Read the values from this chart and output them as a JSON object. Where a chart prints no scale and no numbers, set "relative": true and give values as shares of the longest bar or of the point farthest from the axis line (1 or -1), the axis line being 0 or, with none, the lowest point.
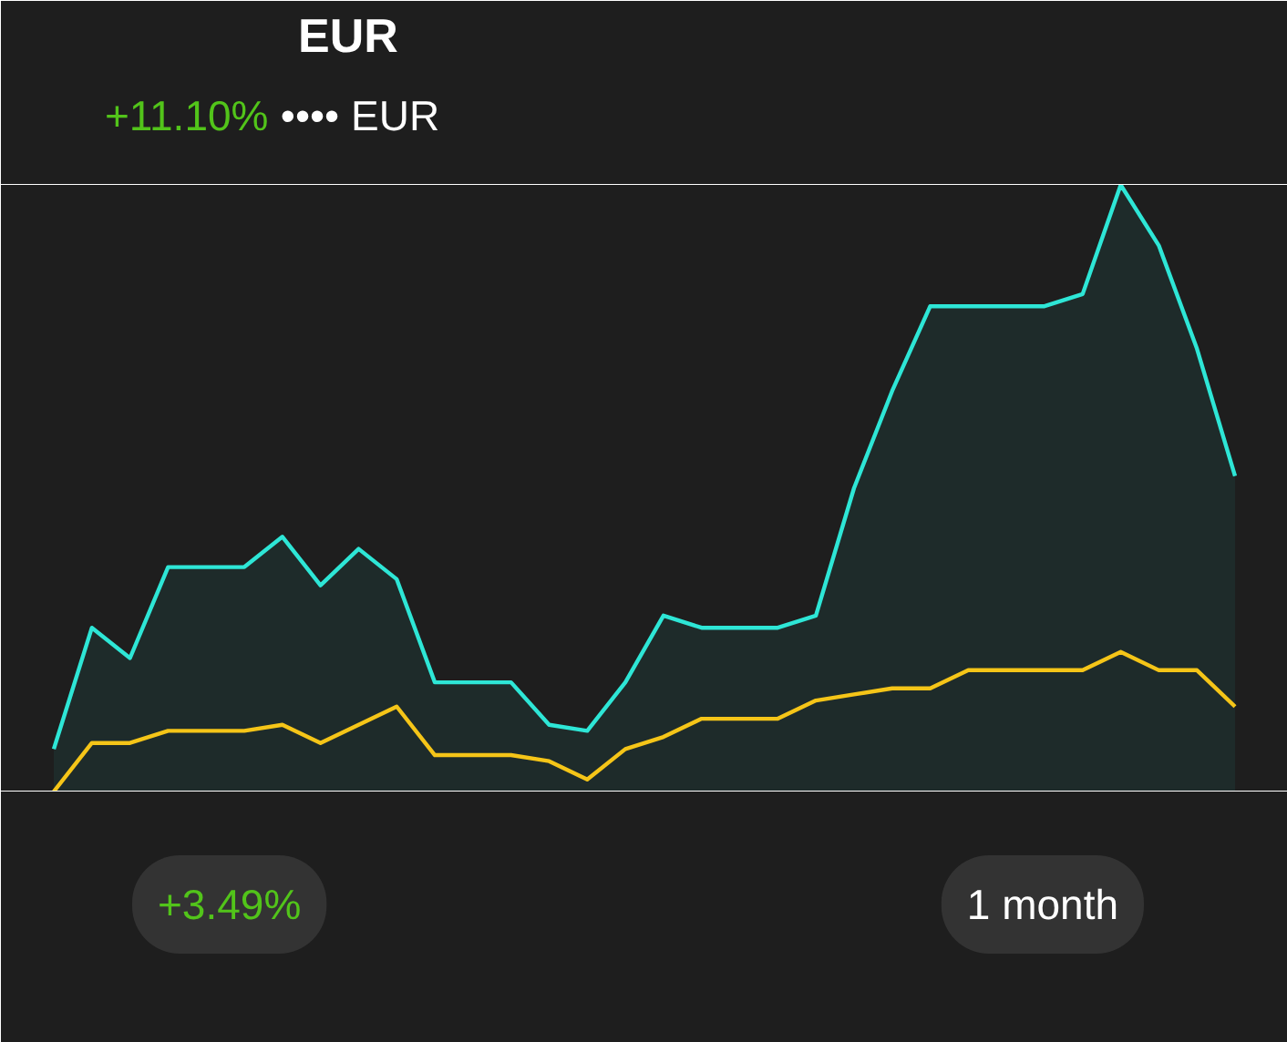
{
  "chart_data": {
    "type": "line",
    "title": "EUR",
    "subtitle": "+11.10% •••• EUR",
    "relative": true,
    "grid": false,
    "marker": "none",
    "categories": [
      null,
      null,
      null,
      null,
      null,
      null,
      null,
      null,
      null,
      null,
      null,
      null,
      null,
      null,
      null,
      null,
      null,
      null,
      null,
      null,
      null,
      null,
      null,
      null,
      null,
      null,
      null,
      null,
      null,
      null,
      null,
      null
    ],
    "series": [
      {
        "type": "area",
        "color": "#2ee6d6",
        "values": [
          0.07,
          0.27,
          0.22,
          0.37,
          0.37,
          0.37,
          0.42,
          0.34,
          0.4,
          0.35,
          0.18,
          0.18,
          0.18,
          0.11,
          0.1,
          0.18,
          0.29,
          0.27,
          0.27,
          0.27,
          0.29,
          0.5,
          0.66,
          0.8,
          0.8,
          0.8,
          0.8,
          0.82,
          1,
          0.9,
          0.73,
          0.52
        ]
      },
      {
        "type": "line",
        "color": "#f5c518",
        "values": [
          0,
          0.08,
          0.08,
          0.1,
          0.1,
          0.1,
          0.11,
          0.08,
          0.11,
          0.14,
          0.06,
          0.06,
          0.06,
          0.05,
          0.02,
          0.07,
          0.09,
          0.12,
          0.12,
          0.12,
          0.15,
          0.16,
          0.17,
          0.17,
          0.2,
          0.2,
          0.2,
          0.2,
          0.23,
          0.2,
          0.2,
          0.14
        ]
      }
    ],
    "annotations": [
      "+3.49%",
      "1 month"
    ]
  }
}
